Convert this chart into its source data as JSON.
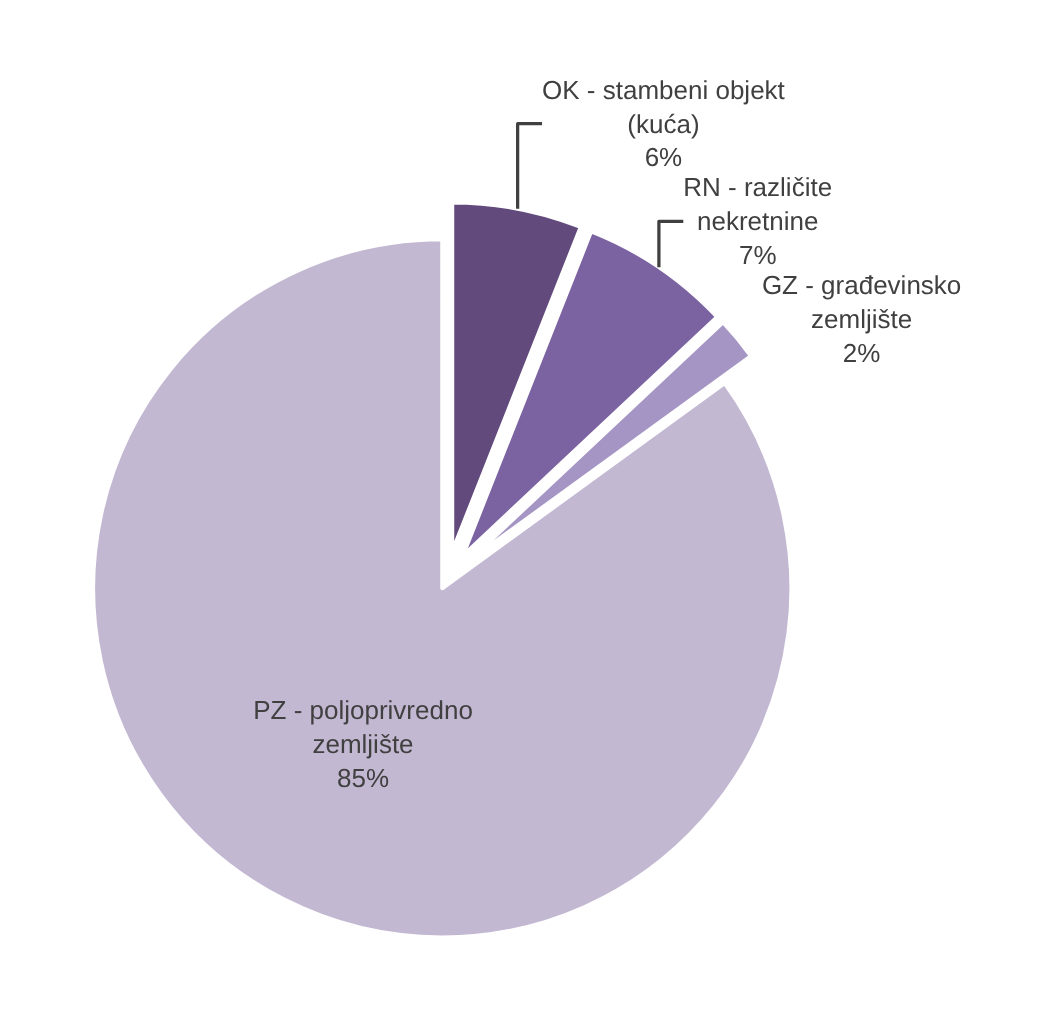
{
  "chart_data": {
    "type": "pie",
    "categories": [
      "OK - stambeni objekt (kuća)",
      "RN - različite nekretnine",
      "GZ - građevinsko zemljište",
      "PZ - poljoprivredno zemljište"
    ],
    "values": [
      6,
      7,
      2,
      85
    ],
    "value_labels": [
      "6%",
      "7%",
      "2%",
      "85%"
    ],
    "colors": [
      "#624a7c",
      "#7b62a0",
      "#a595c4",
      "#c3b8d2"
    ],
    "legend": false
  }
}
